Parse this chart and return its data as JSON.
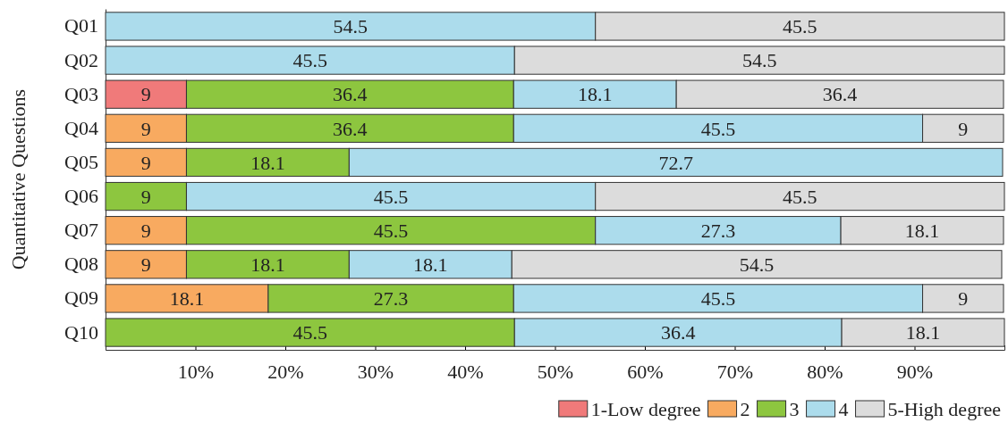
{
  "chart_data": {
    "type": "bar",
    "orientation": "horizontal",
    "stacked": true,
    "ylabel": "Quantitative Questions",
    "categories": [
      "Q01",
      "Q02",
      "Q03",
      "Q04",
      "Q05",
      "Q06",
      "Q07",
      "Q08",
      "Q09",
      "Q10"
    ],
    "series": [
      {
        "name": "1-Low degree",
        "color": "#f07a7a",
        "values": [
          null,
          null,
          9,
          null,
          null,
          null,
          null,
          null,
          null,
          null
        ]
      },
      {
        "name": "2",
        "color": "#f8aa60",
        "values": [
          null,
          null,
          null,
          9,
          9,
          null,
          9,
          9,
          18.1,
          null
        ]
      },
      {
        "name": "3",
        "color": "#8dc63f",
        "values": [
          null,
          null,
          36.4,
          36.4,
          18.1,
          9,
          45.5,
          18.1,
          27.3,
          45.5
        ]
      },
      {
        "name": "4",
        "color": "#acdcec",
        "values": [
          54.5,
          45.5,
          18.1,
          45.5,
          72.7,
          45.5,
          27.3,
          18.1,
          45.5,
          36.4
        ]
      },
      {
        "name": "5-High degree",
        "color": "#dcdcdc",
        "values": [
          45.5,
          54.5,
          36.4,
          9,
          null,
          45.5,
          18.1,
          54.5,
          9,
          18.1
        ]
      }
    ],
    "xlim": [
      0,
      100
    ],
    "xticks": [
      {
        "value": 10,
        "label": "10%"
      },
      {
        "value": 20,
        "label": "20%"
      },
      {
        "value": 30,
        "label": "30%"
      },
      {
        "value": 40,
        "label": "40%"
      },
      {
        "value": 50,
        "label": "50%"
      },
      {
        "value": 60,
        "label": "60%"
      },
      {
        "value": 70,
        "label": "70%"
      },
      {
        "value": 80,
        "label": "80%"
      },
      {
        "value": 90,
        "label": "90%"
      }
    ],
    "data_labels": true,
    "legend": "bottom right",
    "grid": false
  }
}
